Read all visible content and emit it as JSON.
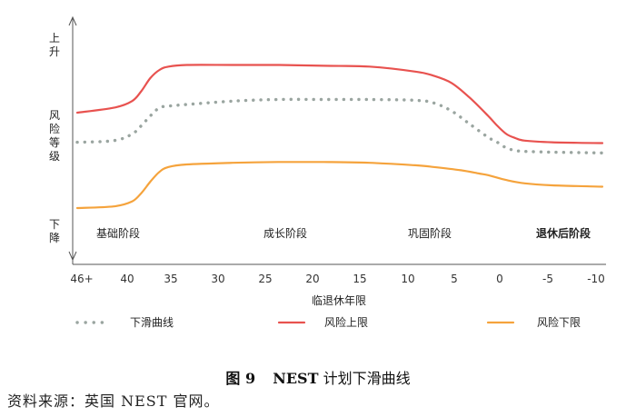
{
  "chart_data": {
    "type": "line",
    "title": "",
    "xlabel": "临退休年限",
    "ylabel": "风险等级",
    "y_top_label": "上升",
    "y_bottom_label": "下降",
    "x_ticks": [
      "46+",
      "40",
      "35",
      "30",
      "25",
      "20",
      "15",
      "10",
      "5",
      "0",
      "-5",
      "-10"
    ],
    "xlim": [
      47,
      -10.5
    ],
    "ylim": [
      0,
      100
    ],
    "grid": false,
    "legend_position": "bottom",
    "phases": [
      {
        "label": "基础阶段",
        "x": 40,
        "bold": false
      },
      {
        "label": "成长阶段",
        "x": 22.5,
        "bold": false
      },
      {
        "label": "巩固阶段",
        "x": 7.5,
        "bold": false
      },
      {
        "label": "退休后阶段",
        "x": -7,
        "bold": true
      }
    ],
    "series": [
      {
        "name": "风险上限",
        "color": "#e8524f",
        "style": "solid",
        "x": [
          47,
          43,
          41,
          40,
          39,
          38,
          37,
          35,
          30,
          25,
          20,
          15,
          10,
          8,
          6,
          4,
          2,
          1,
          0,
          -1,
          -2,
          -5,
          -10.5
        ],
        "y": [
          58,
          61,
          65,
          71,
          79,
          84,
          86,
          87,
          87,
          87,
          86.5,
          86,
          83,
          80.5,
          76,
          67,
          56,
          50,
          45,
          42.5,
          41,
          40,
          39.5
        ]
      },
      {
        "name": "下滑曲线",
        "color": "#9aa5a0",
        "style": "dotted",
        "x": [
          47,
          43,
          41,
          40,
          39,
          38,
          37,
          35,
          30,
          25,
          20,
          15,
          10,
          8,
          6,
          4,
          2,
          1,
          0,
          -1,
          -2,
          -5,
          -10.5
        ],
        "y": [
          40,
          41,
          45,
          50,
          56,
          61,
          62,
          63,
          65,
          66,
          66,
          66,
          65.5,
          64,
          59,
          51,
          43,
          40,
          36.5,
          35,
          34.5,
          34,
          33.5
        ]
      },
      {
        "name": "风险下限",
        "color": "#f5a33c",
        "style": "solid",
        "x": [
          47,
          43,
          41,
          40,
          39,
          38,
          37,
          35,
          30,
          25,
          20,
          15,
          10,
          8,
          5,
          3,
          2,
          0,
          -2,
          -5,
          -10.5
        ],
        "y": [
          0,
          1,
          4,
          9,
          16,
          22,
          25,
          26.5,
          27.5,
          28,
          28,
          27.5,
          26,
          25,
          23,
          21,
          20,
          17,
          15,
          13.8,
          13
        ]
      }
    ]
  },
  "legend": {
    "items": [
      {
        "name": "下滑曲线",
        "color": "#9aa5a0",
        "style": "dotted"
      },
      {
        "name": "风险上限",
        "color": "#e8524f",
        "style": "solid"
      },
      {
        "name": "风险下限",
        "color": "#f5a33c",
        "style": "solid"
      }
    ]
  },
  "caption": {
    "number": "图 9",
    "bold_text": "NEST",
    "text": "计划下滑曲线"
  },
  "source": "资料来源：英国 NEST 官网。"
}
